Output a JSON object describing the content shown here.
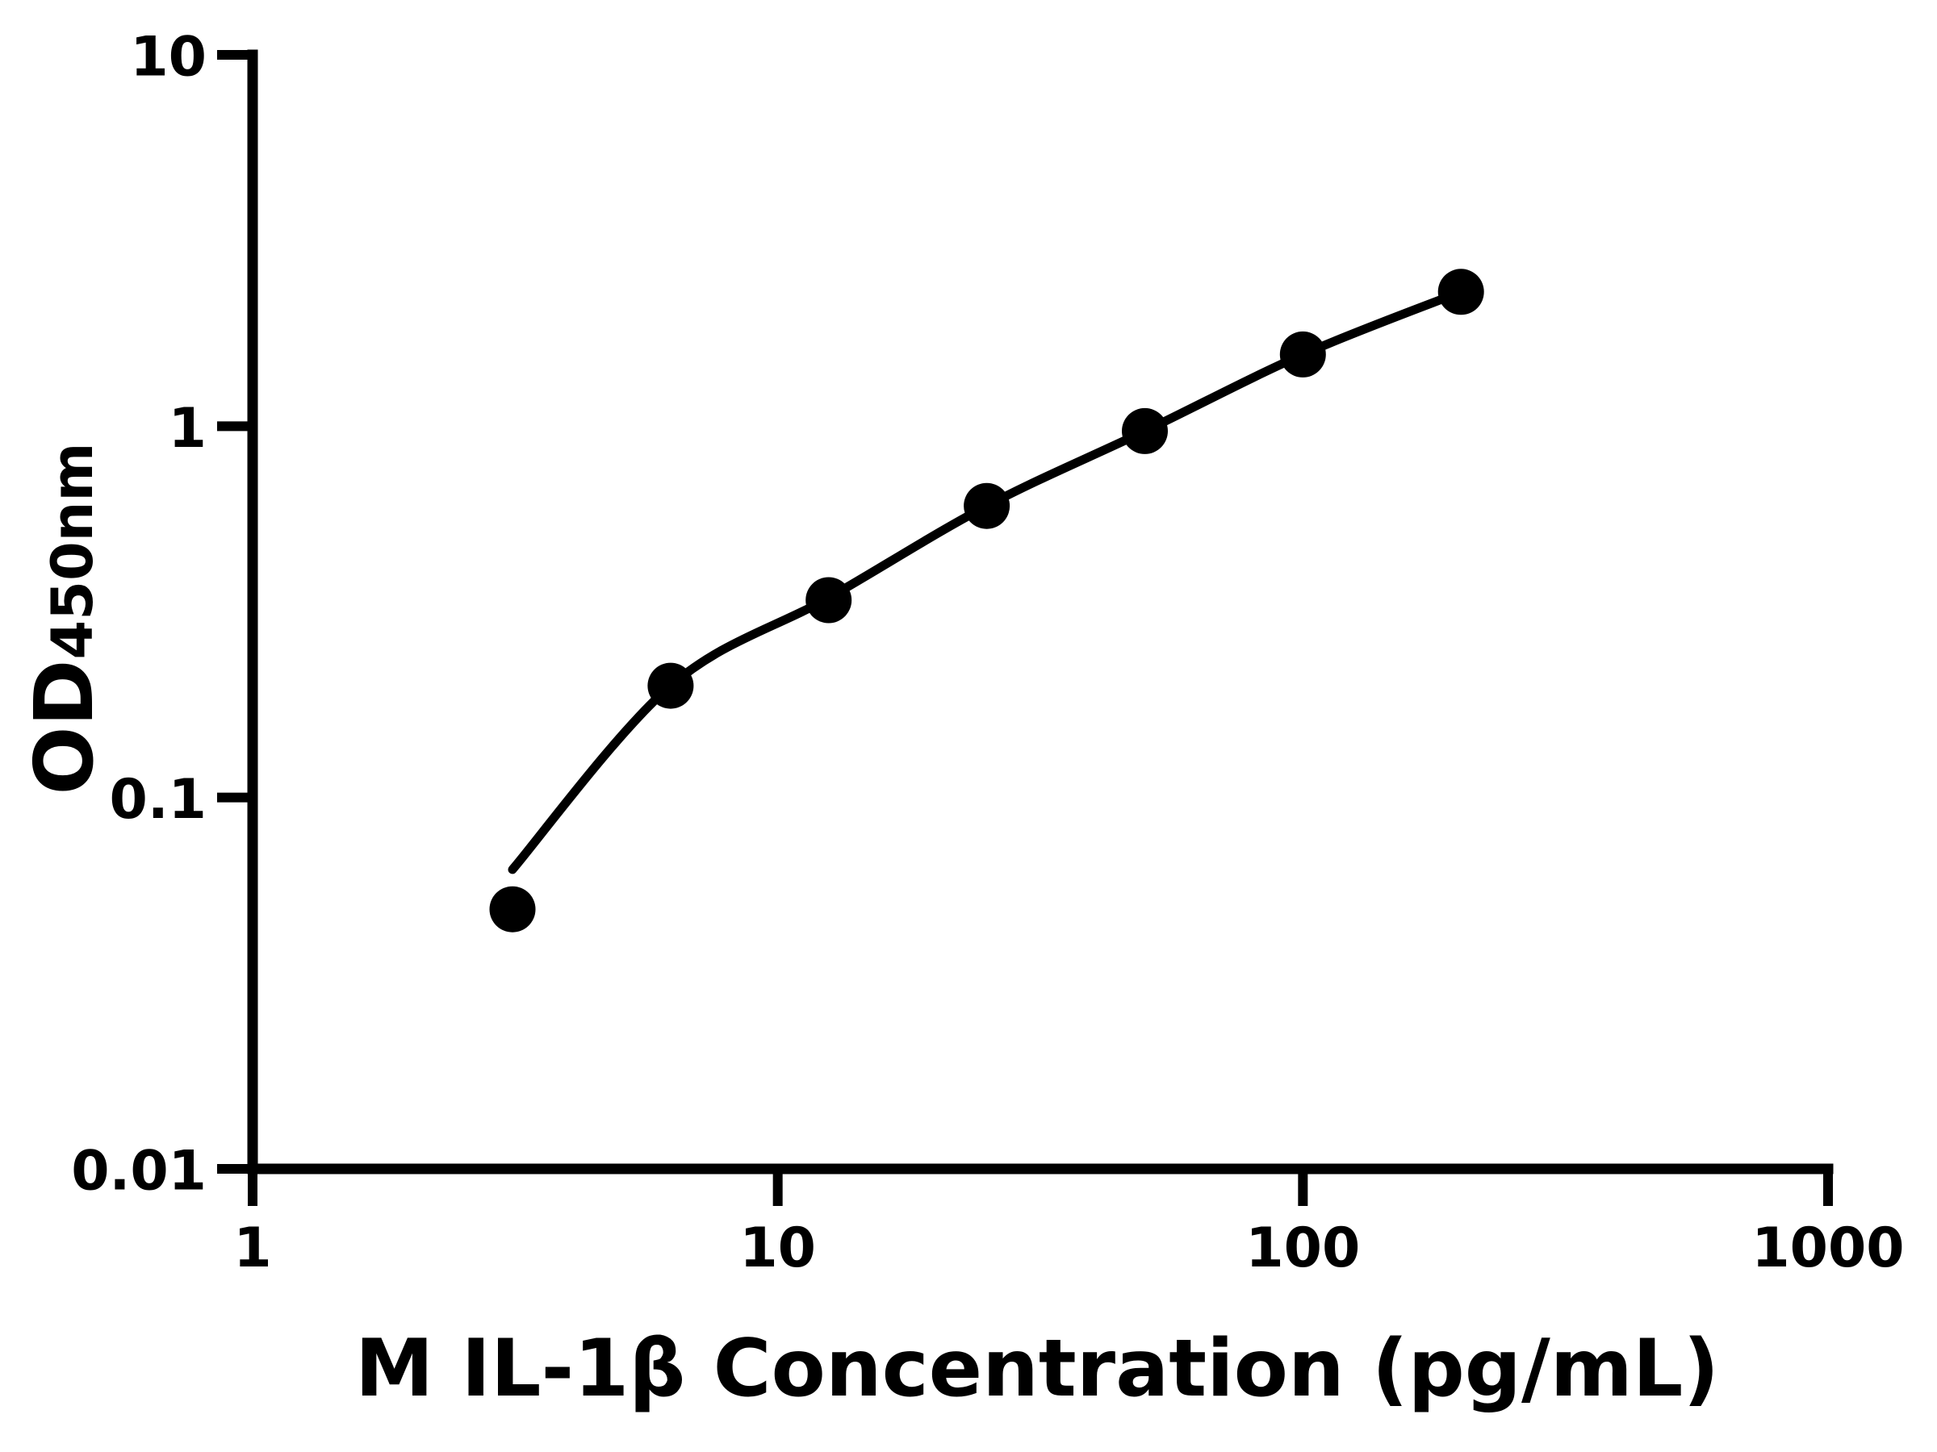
{
  "chart_data": {
    "type": "scatter",
    "title": "",
    "xlabel": "M IL-1β Concentration (pg/mL)",
    "ylabel_main": "OD",
    "ylabel_sub": "450nm",
    "x_scale": "log",
    "y_scale": "log",
    "xlim": [
      1,
      1000
    ],
    "ylim": [
      0.01,
      10
    ],
    "grid": false,
    "legend": "none",
    "xticks": [
      {
        "value": 1,
        "label": "1"
      },
      {
        "value": 10,
        "label": "10"
      },
      {
        "value": 100,
        "label": "100"
      },
      {
        "value": 1000,
        "label": "1000"
      }
    ],
    "yticks": [
      {
        "value": 0.01,
        "label": "0.01"
      },
      {
        "value": 0.1,
        "label": "0.1"
      },
      {
        "value": 1,
        "label": "1"
      },
      {
        "value": 10,
        "label": "10"
      }
    ],
    "series": [
      {
        "name": "standard-curve-points",
        "marker": "circle",
        "color": "#000000",
        "points": [
          {
            "x": 3.125,
            "y": 0.05
          },
          {
            "x": 6.25,
            "y": 0.2
          },
          {
            "x": 12.5,
            "y": 0.34
          },
          {
            "x": 25,
            "y": 0.61
          },
          {
            "x": 50,
            "y": 0.97
          },
          {
            "x": 100,
            "y": 1.56
          },
          {
            "x": 200,
            "y": 2.3
          }
        ]
      }
    ],
    "fit_curve": {
      "color": "#000000",
      "points": [
        {
          "x": 3.125,
          "y": 0.064
        },
        {
          "x": 6.25,
          "y": 0.2
        },
        {
          "x": 12.5,
          "y": 0.345
        },
        {
          "x": 25,
          "y": 0.61
        },
        {
          "x": 50,
          "y": 0.97
        },
        {
          "x": 100,
          "y": 1.56
        },
        {
          "x": 200,
          "y": 2.3
        }
      ]
    },
    "colors": {
      "foreground": "#000000",
      "background": "#ffffff"
    }
  }
}
